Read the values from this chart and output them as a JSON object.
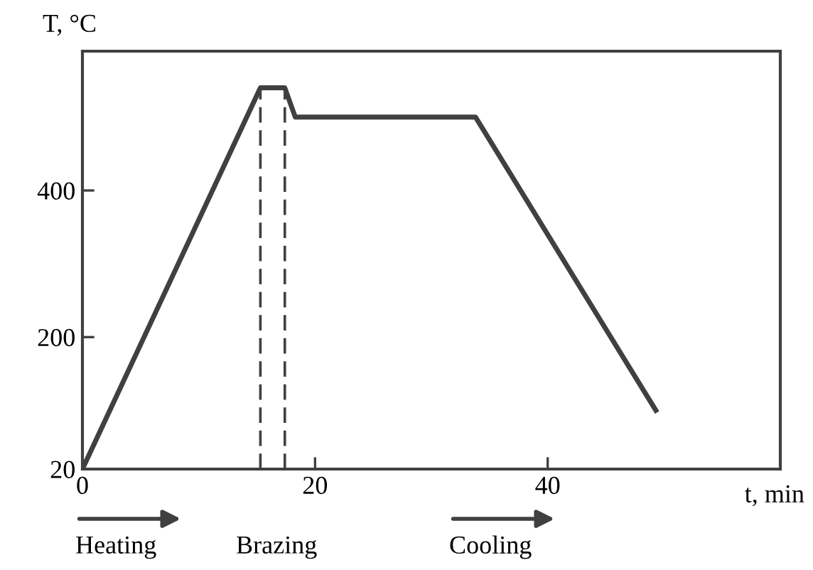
{
  "chart_data": {
    "type": "line",
    "xlabel": "t, min",
    "ylabel": "T, °C",
    "xlim": [
      0,
      60
    ],
    "ylim": [
      20,
      590
    ],
    "xticks": [
      0,
      20,
      40
    ],
    "yticks": [
      20,
      200,
      400
    ],
    "grid": false,
    "series": [
      {
        "color": "#404040",
        "x": [
          0,
          15.3,
          17.4,
          18.3,
          33.8,
          49.3
        ],
        "values": [
          20,
          540,
          540,
          500,
          500,
          100
        ],
        "line_style": "solid"
      },
      {
        "color": "#404040",
        "x": [
          15.3,
          15.3
        ],
        "values": [
          20,
          540
        ],
        "line_style": "dashed"
      },
      {
        "color": "#404040",
        "x": [
          17.4,
          17.4
        ],
        "values": [
          20,
          540
        ],
        "line_style": "dashed"
      }
    ],
    "annotations": [
      "Heating",
      "Brazing",
      "Cooling"
    ]
  }
}
